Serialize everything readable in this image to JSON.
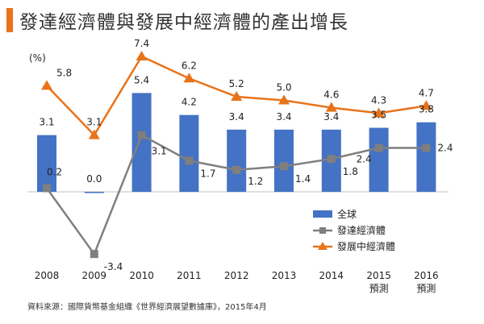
{
  "title": "發達經濟體與發展中經濟體的產出增長",
  "source": "資料來源：國際貨幣基金組織《世界經濟展望數據庫》，2015年4月",
  "chart_data": {
    "type": "bar+line",
    "title": "發達經濟體與發展中經濟體的產出增長",
    "ylabel": "(%)",
    "ylim": [
      -4.5,
      8.5
    ],
    "categories": [
      "2008",
      "2009",
      "2010",
      "2011",
      "2012",
      "2013",
      "2014",
      "2015",
      "2016"
    ],
    "category_sublabels": [
      "",
      "",
      "",
      "",
      "",
      "",
      "",
      "預測",
      "預測"
    ],
    "series": [
      {
        "name": "全球",
        "kind": "bar",
        "color": "#4472c4",
        "values": [
          3.1,
          0.0,
          5.4,
          4.2,
          3.4,
          3.4,
          3.4,
          3.5,
          3.8
        ],
        "labels": [
          "3.1",
          "0.0",
          "5.4",
          "4.2",
          "3.4",
          "3.4",
          "3.4",
          "3.5",
          "3.8"
        ]
      },
      {
        "name": "發達經濟體",
        "kind": "line",
        "marker": "square",
        "color": "#7f7f7f",
        "values": [
          0.2,
          -3.4,
          3.1,
          1.7,
          1.2,
          1.4,
          1.8,
          2.4,
          2.4
        ],
        "labels": [
          "0.2",
          "-3.4",
          "3.1",
          "1.7",
          "1.2",
          "1.4",
          "1.8",
          "2.4",
          "2.4"
        ]
      },
      {
        "name": "發展中經濟體",
        "kind": "line",
        "marker": "triangle",
        "color": "#e8731a",
        "values": [
          5.8,
          3.1,
          7.4,
          6.2,
          5.2,
          5.0,
          4.6,
          4.3,
          4.7
        ],
        "labels": [
          "5.8",
          "3.1",
          "7.4",
          "6.2",
          "5.2",
          "5.0",
          "4.6",
          "4.3",
          "4.7"
        ]
      }
    ],
    "legend_position": "right"
  }
}
